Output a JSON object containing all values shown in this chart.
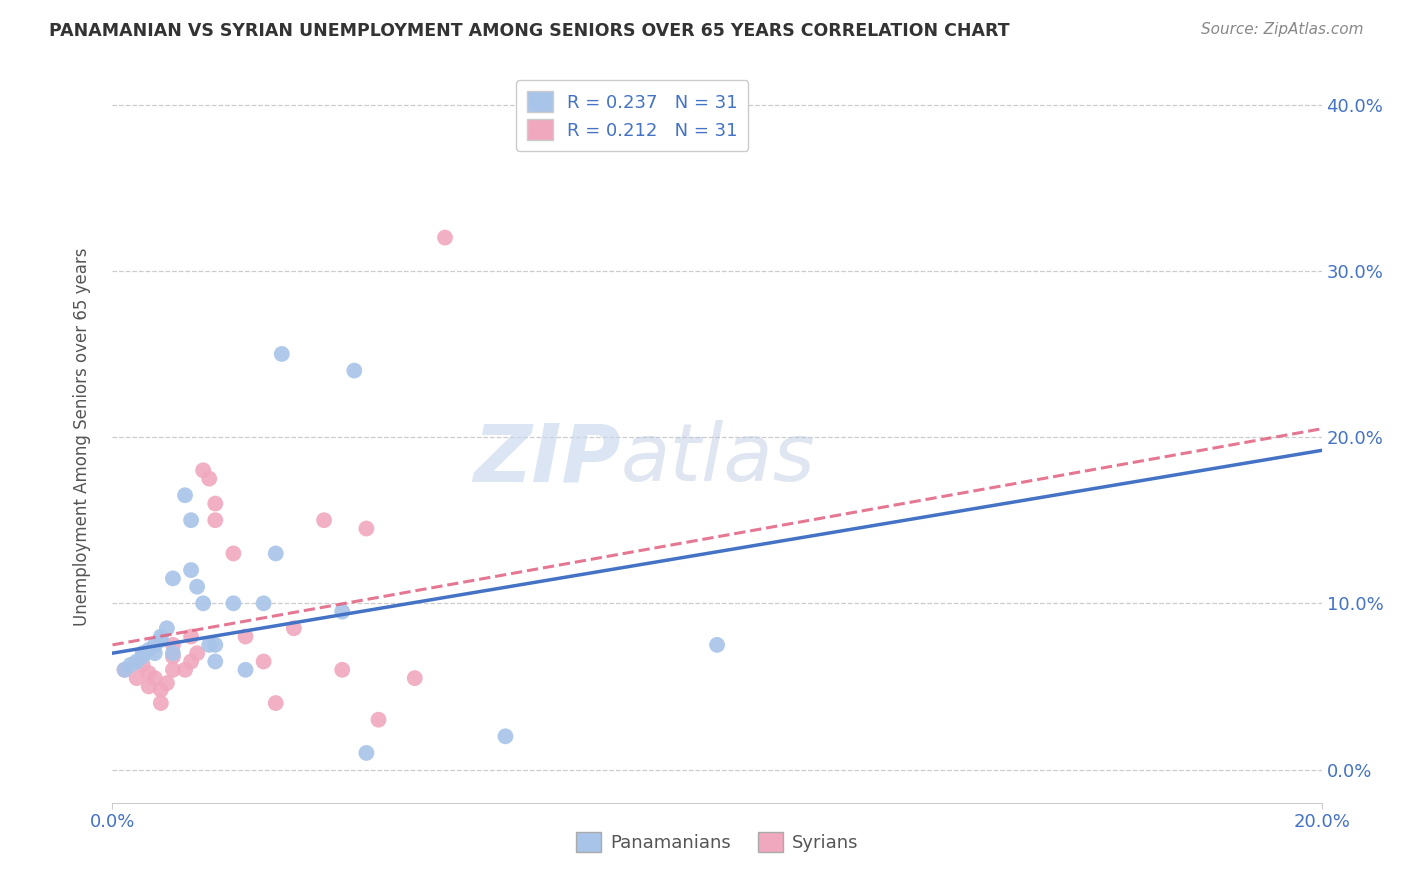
{
  "title": "PANAMANIAN VS SYRIAN UNEMPLOYMENT AMONG SENIORS OVER 65 YEARS CORRELATION CHART",
  "source": "Source: ZipAtlas.com",
  "ylabel": "Unemployment Among Seniors over 65 years",
  "xlim": [
    0.0,
    0.2
  ],
  "ylim": [
    -0.02,
    0.42
  ],
  "xtick_vals": [
    0.0,
    0.2
  ],
  "xtick_labels": [
    "0.0%",
    "20.0%"
  ],
  "ytick_vals": [
    0.0,
    0.1,
    0.2,
    0.3,
    0.4
  ],
  "ytick_labels_right": [
    "0.0%",
    "10.0%",
    "20.0%",
    "30.0%",
    "40.0%"
  ],
  "pan_color": "#a8c4e8",
  "syr_color": "#f0a8be",
  "pan_line_color": "#4472c4",
  "syr_line_color": "#e06080",
  "legend_R_pan": "R = 0.237",
  "legend_N_pan": "N = 31",
  "legend_R_syr": "R = 0.212",
  "legend_N_syr": "N = 31",
  "pan_scatter_x": [
    0.002,
    0.003,
    0.004,
    0.005,
    0.005,
    0.006,
    0.007,
    0.007,
    0.008,
    0.008,
    0.009,
    0.01,
    0.01,
    0.012,
    0.013,
    0.013,
    0.014,
    0.015,
    0.016,
    0.017,
    0.017,
    0.02,
    0.022,
    0.025,
    0.027,
    0.028,
    0.038,
    0.04,
    0.042,
    0.065,
    0.1
  ],
  "pan_scatter_y": [
    0.06,
    0.063,
    0.065,
    0.068,
    0.07,
    0.072,
    0.07,
    0.075,
    0.078,
    0.08,
    0.085,
    0.07,
    0.115,
    0.165,
    0.15,
    0.12,
    0.11,
    0.1,
    0.075,
    0.075,
    0.065,
    0.1,
    0.06,
    0.1,
    0.13,
    0.25,
    0.095,
    0.24,
    0.01,
    0.02,
    0.075
  ],
  "syr_scatter_x": [
    0.002,
    0.004,
    0.005,
    0.006,
    0.006,
    0.007,
    0.008,
    0.008,
    0.009,
    0.01,
    0.01,
    0.01,
    0.012,
    0.013,
    0.013,
    0.014,
    0.015,
    0.016,
    0.017,
    0.017,
    0.02,
    0.022,
    0.025,
    0.027,
    0.03,
    0.035,
    0.038,
    0.042,
    0.044,
    0.05,
    0.055
  ],
  "syr_scatter_y": [
    0.06,
    0.055,
    0.063,
    0.058,
    0.05,
    0.055,
    0.048,
    0.04,
    0.052,
    0.06,
    0.068,
    0.075,
    0.06,
    0.08,
    0.065,
    0.07,
    0.18,
    0.175,
    0.16,
    0.15,
    0.13,
    0.08,
    0.065,
    0.04,
    0.085,
    0.15,
    0.06,
    0.145,
    0.03,
    0.055,
    0.32
  ],
  "pan_trendline_x": [
    0.0,
    0.2
  ],
  "pan_trendline_y": [
    0.07,
    0.192
  ],
  "syr_trendline_x": [
    0.0,
    0.2
  ],
  "syr_trendline_y": [
    0.075,
    0.205
  ],
  "watermark_zip": "ZIP",
  "watermark_atlas": "atlas",
  "background_color": "#ffffff",
  "grid_color": "#cccccc",
  "marker_size": 130
}
